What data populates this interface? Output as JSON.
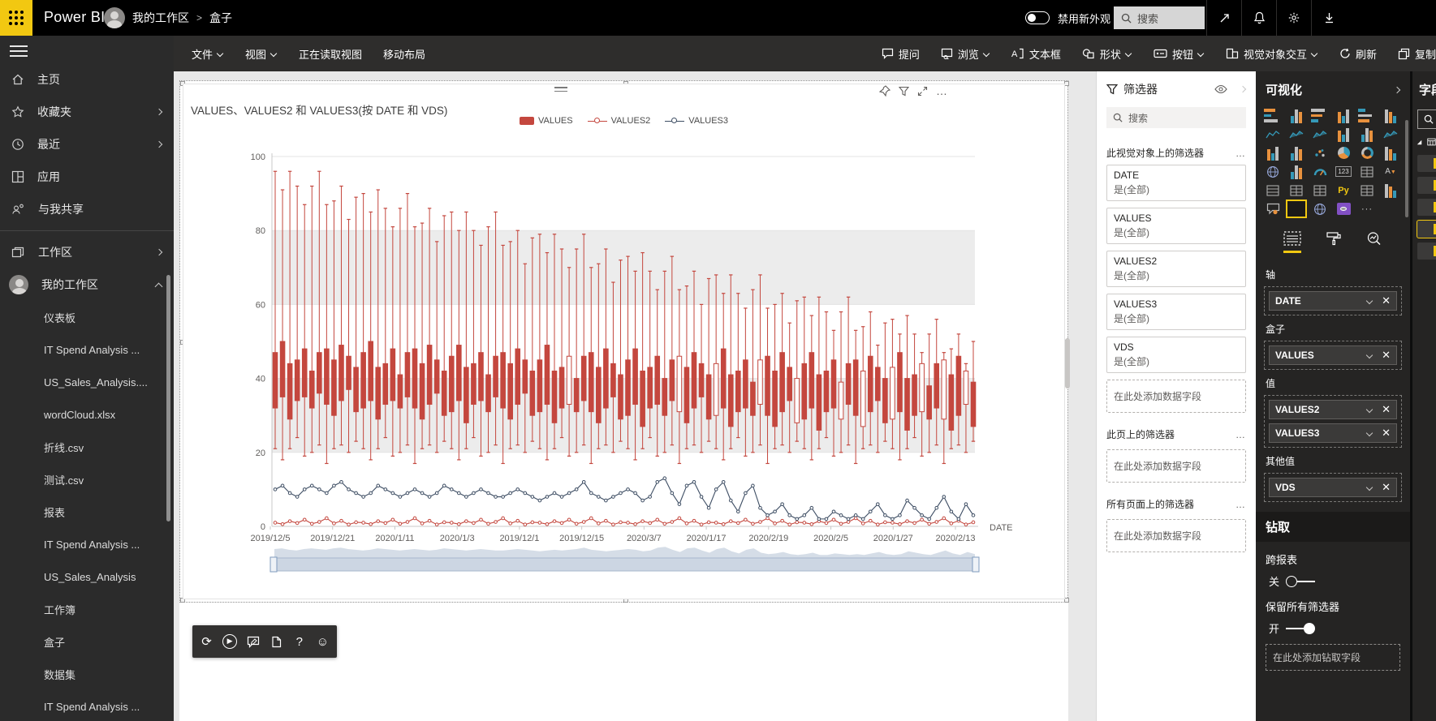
{
  "topbar": {
    "app_name": "Power BI",
    "breadcrumb_workspace": "我的工作区",
    "breadcrumb_sep": ">",
    "breadcrumb_page": "盒子",
    "new_look_label": "禁用新外观",
    "search_placeholder": "搜索"
  },
  "ribbon": {
    "file": "文件",
    "view": "视图",
    "reading_view": "正在读取视图",
    "mobile_layout": "移动布局",
    "ask": "提问",
    "explore": "浏览",
    "textbox": "文本框",
    "shapes": "形状",
    "buttons": "按钮",
    "visual_interactions": "视觉对象交互",
    "refresh": "刷新",
    "duplicate": "复制"
  },
  "sidebar": {
    "nav": [
      {
        "label": "主页",
        "chevron": false
      },
      {
        "label": "收藏夹",
        "chevron": true
      },
      {
        "label": "最近",
        "chevron": true
      },
      {
        "label": "应用",
        "chevron": false
      },
      {
        "label": "与我共享",
        "chevron": false
      }
    ],
    "workspaces_label": "工作区",
    "my_workspace_label": "我的工作区",
    "files": [
      "仪表板",
      "IT Spend Analysis ...",
      "US_Sales_Analysis....",
      "wordCloud.xlsx",
      "折线.csv",
      "测试.csv",
      "报表",
      "IT Spend Analysis ...",
      "US_Sales_Analysis",
      "工作簿",
      "盒子",
      "数据集",
      "IT Spend Analysis ..."
    ]
  },
  "visual": {
    "title": "VALUES、VALUES2 和 VALUES3(按 DATE 和 VDS)",
    "legend": [
      "VALUES",
      "VALUES2",
      "VALUES3"
    ],
    "x_axis_title": "DATE"
  },
  "chart_data": {
    "type": "box-whisker with line series",
    "title": "VALUES、VALUES2 和 VALUES3(按 DATE 和 VDS)",
    "xlabel": "DATE",
    "ylim": [
      0,
      100
    ],
    "y_ticks": [
      0,
      20,
      40,
      60,
      80,
      100
    ],
    "x_tick_labels": [
      "2019/12/5",
      "2019/12/21",
      "2020/1/11",
      "2020/1/3",
      "2019/12/1",
      "2019/12/15",
      "2020/3/7",
      "2020/1/17",
      "2020/2/19",
      "2020/2/5",
      "2020/1/27",
      "2020/2/13"
    ],
    "legend_position": "top-center",
    "band_values": [
      [
        20,
        40
      ],
      [
        60,
        80
      ]
    ],
    "series_colors": {
      "VALUES": "#C4473E",
      "VALUES2": "#C4473E",
      "VALUES3": "#3D4D63"
    },
    "boxes": {
      "name": "VALUES",
      "hi": [
        96,
        91,
        96,
        92,
        87,
        92,
        96,
        87,
        88,
        92,
        83,
        89,
        90,
        85,
        91,
        86,
        81,
        86,
        90,
        81,
        82,
        86,
        77,
        84,
        85,
        80,
        85,
        80,
        76,
        81,
        85,
        76,
        77,
        80,
        71,
        78,
        79,
        74,
        79,
        75,
        70,
        75,
        79,
        70,
        71,
        75,
        66,
        72,
        73,
        69,
        74,
        69,
        64,
        69,
        73,
        64,
        65,
        69,
        60,
        67,
        68,
        63,
        68,
        63,
        59,
        64,
        68,
        59,
        60,
        63,
        55,
        61,
        62,
        57,
        62,
        58,
        53,
        58,
        62,
        53,
        54,
        58,
        49,
        55,
        56,
        52,
        57,
        52,
        47,
        52,
        56,
        47,
        48,
        52,
        43,
        50
      ],
      "top": [
        47,
        50,
        44,
        45,
        48,
        42,
        47,
        48,
        45,
        49,
        46,
        43,
        47,
        50,
        43,
        44,
        48,
        41,
        47,
        48,
        44,
        49,
        45,
        42,
        46,
        49,
        43,
        44,
        47,
        41,
        46,
        47,
        44,
        48,
        45,
        42,
        45,
        49,
        42,
        43,
        46,
        40,
        46,
        47,
        43,
        48,
        44,
        41,
        45,
        48,
        42,
        43,
        46,
        40,
        45,
        46,
        43,
        47,
        44,
        41,
        44,
        48,
        41,
        42,
        45,
        39,
        45,
        46,
        42,
        47,
        43,
        40,
        44,
        47,
        41,
        42,
        45,
        39,
        44,
        45,
        42,
        46,
        43,
        40,
        43,
        47,
        40,
        41,
        44,
        38,
        44,
        45,
        41,
        46,
        42,
        39
      ],
      "bot": [
        32,
        35,
        29,
        34,
        35,
        32,
        36,
        33,
        30,
        34,
        37,
        31,
        32,
        34,
        29,
        33,
        34,
        32,
        35,
        32,
        29,
        33,
        36,
        30,
        31,
        34,
        28,
        33,
        34,
        31,
        35,
        32,
        29,
        33,
        36,
        30,
        31,
        33,
        28,
        32,
        33,
        31,
        34,
        31,
        28,
        32,
        35,
        29,
        30,
        33,
        27,
        32,
        33,
        30,
        34,
        31,
        28,
        32,
        35,
        29,
        30,
        32,
        27,
        31,
        32,
        30,
        33,
        30,
        27,
        31,
        34,
        28,
        29,
        32,
        26,
        31,
        32,
        29,
        33,
        30,
        27,
        31,
        34,
        28,
        29,
        31,
        26,
        30,
        31,
        29,
        32,
        29,
        26,
        30,
        33,
        27
      ],
      "lo": [
        21,
        18,
        21,
        24,
        19,
        20,
        22,
        17,
        21,
        22,
        20,
        23,
        21,
        18,
        21,
        24,
        19,
        20,
        22,
        17,
        21,
        22,
        20,
        23,
        21,
        18,
        21,
        24,
        19,
        20,
        22,
        17,
        21,
        22,
        20,
        23,
        21,
        18,
        21,
        24,
        19,
        20,
        22,
        17,
        21,
        22,
        20,
        23,
        21,
        18,
        21,
        24,
        19,
        20,
        22,
        17,
        21,
        22,
        20,
        23,
        21,
        18,
        21,
        24,
        19,
        20,
        22,
        17,
        21,
        22,
        20,
        23,
        21,
        18,
        21,
        24,
        19,
        20,
        22,
        17,
        21,
        22,
        20,
        23,
        21,
        18,
        21,
        24,
        19,
        20,
        22,
        17,
        21,
        22,
        20,
        23
      ],
      "hollow_indices": [
        40,
        55,
        60,
        66,
        71,
        77,
        80,
        84,
        88,
        91,
        94
      ]
    },
    "series": [
      {
        "name": "VALUES3",
        "type": "line",
        "values": [
          10,
          11,
          9,
          8,
          10,
          11,
          10,
          9,
          11,
          12,
          10,
          9,
          8,
          9,
          11,
          10,
          9,
          8,
          9,
          10,
          9,
          8,
          9,
          11,
          10,
          9,
          8,
          9,
          10,
          9,
          8,
          8,
          9,
          10,
          9,
          8,
          7,
          8,
          9,
          8,
          9,
          10,
          12,
          9,
          8,
          7,
          8,
          9,
          10,
          9,
          7,
          8,
          12,
          13,
          9,
          6,
          11,
          12,
          8,
          5,
          10,
          12,
          7,
          4,
          9,
          11,
          5,
          3,
          4,
          6,
          3,
          2,
          3,
          5,
          2,
          2,
          4,
          3,
          2,
          3,
          2,
          4,
          6,
          3,
          2,
          3,
          7,
          5,
          3,
          2,
          5,
          8,
          4,
          2,
          6,
          3
        ]
      },
      {
        "name": "VALUES2",
        "type": "line",
        "values": [
          1,
          0.6,
          1.4,
          0.9,
          1.8,
          0.7,
          1.2,
          2.2,
          0.8,
          1.5,
          0.5,
          1.1,
          1,
          0.6,
          1.4,
          0.9,
          1.8,
          0.7,
          1.2,
          2.2,
          0.8,
          1.5,
          0.5,
          1.1,
          1,
          0.6,
          1.4,
          0.9,
          1.8,
          0.7,
          1.2,
          2.2,
          0.8,
          1.5,
          0.5,
          1.1,
          1,
          0.6,
          1.4,
          0.9,
          1.8,
          0.7,
          1.2,
          2.2,
          0.8,
          1.5,
          0.5,
          1.1,
          1,
          0.6,
          1.4,
          0.9,
          1.8,
          0.7,
          1.2,
          2.2,
          0.8,
          1.5,
          0.5,
          1.1,
          1,
          0.6,
          1.4,
          0.9,
          1.8,
          0.7,
          1.2,
          2.2,
          0.8,
          1.5,
          0.5,
          1.1,
          1,
          0.6,
          1.4,
          0.9,
          1.8,
          0.7,
          1.2,
          2.2,
          0.8,
          1.5,
          0.5,
          1.1,
          1,
          0.6,
          1.4,
          0.9,
          1.8,
          0.7,
          1.2,
          2.2,
          0.8,
          1.5,
          0.5,
          1.1
        ]
      }
    ]
  },
  "filters": {
    "title": "筛选器",
    "search_placeholder": "搜索",
    "sections": [
      {
        "label": "此视觉对象上的筛选器",
        "cards": [
          {
            "name": "DATE",
            "value": "是(全部)"
          },
          {
            "name": "VALUES",
            "value": "是(全部)"
          },
          {
            "name": "VALUES2",
            "value": "是(全部)"
          },
          {
            "name": "VALUES3",
            "value": "是(全部)"
          },
          {
            "name": "VDS",
            "value": "是(全部)"
          }
        ],
        "add_label": "在此处添加数据字段"
      },
      {
        "label": "此页上的筛选器",
        "cards": [],
        "add_label": "在此处添加数据字段"
      },
      {
        "label": "所有页面上的筛选器",
        "cards": [],
        "add_label": "在此处添加数据字段"
      }
    ]
  },
  "viz_pane": {
    "title": "可视化",
    "py_label": "Py",
    "card_label": "123",
    "more_label": "···",
    "wells": [
      {
        "label": "轴",
        "fields": [
          "DATE"
        ]
      },
      {
        "label": "盒子",
        "fields": [
          "VALUES"
        ]
      },
      {
        "label": "值",
        "fields": [
          "VALUES2",
          "VALUES3"
        ]
      },
      {
        "label": "其他值",
        "fields": [
          "VDS"
        ]
      }
    ],
    "drill": {
      "header": "钻取",
      "cross_report_label": "跨报表",
      "off_label": "关",
      "keep_filters_label": "保留所有筛选器",
      "on_label": "开",
      "add_label": "在此处添加钻取字段"
    }
  },
  "fields_pane": {
    "title": "字段"
  },
  "colors": {
    "accent_yellow": "#F2C811",
    "box_red": "#C4473E",
    "line_dark": "#3D4D63",
    "panel_dark": "#252423"
  }
}
